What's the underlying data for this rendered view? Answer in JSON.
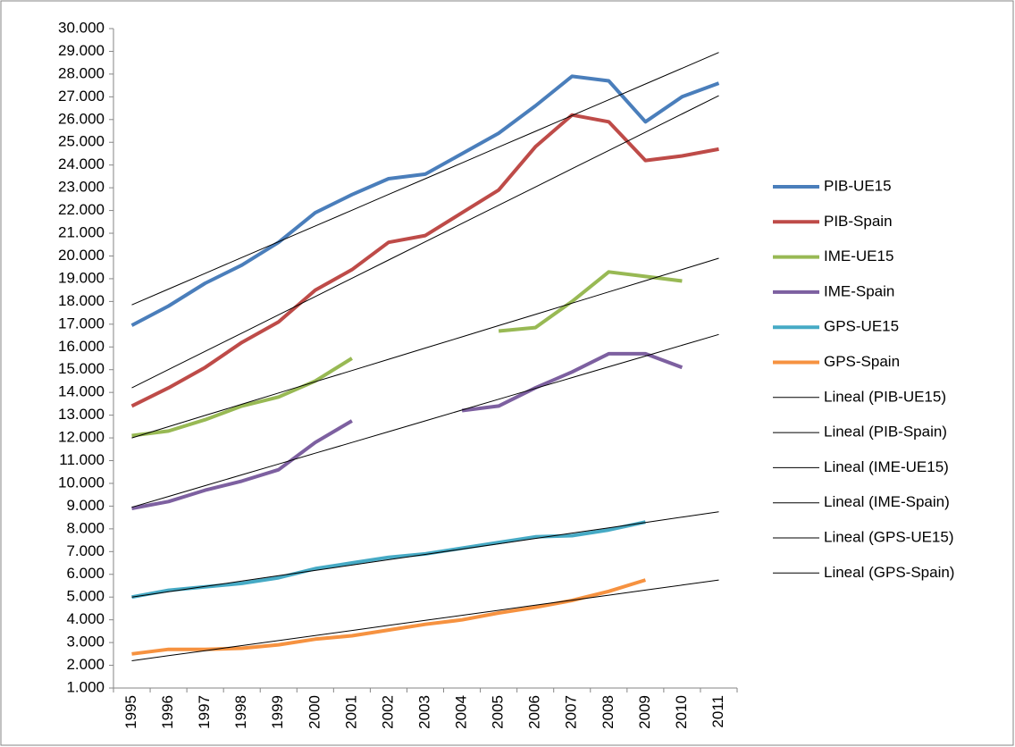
{
  "chart_data": {
    "type": "line",
    "categories": [
      "1995",
      "1996",
      "1997",
      "1998",
      "1999",
      "2000",
      "2001",
      "2002",
      "2003",
      "2004",
      "2005",
      "2006",
      "2007",
      "2008",
      "2009",
      "2010",
      "2011"
    ],
    "ylim": [
      1000,
      30000
    ],
    "yticks": [
      {
        "value": 1000,
        "label": "1.000"
      },
      {
        "value": 2000,
        "label": "2.000"
      },
      {
        "value": 3000,
        "label": "3.000"
      },
      {
        "value": 4000,
        "label": "4.000"
      },
      {
        "value": 5000,
        "label": "5.000"
      },
      {
        "value": 6000,
        "label": "6.000"
      },
      {
        "value": 7000,
        "label": "7.000"
      },
      {
        "value": 8000,
        "label": "8.000"
      },
      {
        "value": 9000,
        "label": "9.000"
      },
      {
        "value": 10000,
        "label": "10.000"
      },
      {
        "value": 11000,
        "label": "11.000"
      },
      {
        "value": 12000,
        "label": "12.000"
      },
      {
        "value": 13000,
        "label": "13.000"
      },
      {
        "value": 14000,
        "label": "14.000"
      },
      {
        "value": 15000,
        "label": "15.000"
      },
      {
        "value": 16000,
        "label": "16.000"
      },
      {
        "value": 17000,
        "label": "17.000"
      },
      {
        "value": 18000,
        "label": "18.000"
      },
      {
        "value": 19000,
        "label": "19.000"
      },
      {
        "value": 20000,
        "label": "20.000"
      },
      {
        "value": 21000,
        "label": "21.000"
      },
      {
        "value": 22000,
        "label": "22.000"
      },
      {
        "value": 23000,
        "label": "23.000"
      },
      {
        "value": 24000,
        "label": "24.000"
      },
      {
        "value": 25000,
        "label": "25.000"
      },
      {
        "value": 26000,
        "label": "26.000"
      },
      {
        "value": 27000,
        "label": "27.000"
      },
      {
        "value": 28000,
        "label": "28.000"
      },
      {
        "value": 29000,
        "label": "29.000"
      },
      {
        "value": 30000,
        "label": "30.000"
      }
    ],
    "legend": "right",
    "series": [
      {
        "name": "PIB-UE15",
        "color": "#4a7ebb",
        "line_width": 4,
        "values": [
          16950,
          17800,
          18800,
          19600,
          20600,
          21900,
          22700,
          23400,
          23600,
          24500,
          25400,
          26600,
          27900,
          27700,
          25900,
          27000,
          27600
        ]
      },
      {
        "name": "PIB-Spain",
        "color": "#be4b48",
        "line_width": 4,
        "values": [
          13400,
          14200,
          15100,
          16200,
          17100,
          18500,
          19400,
          20600,
          20900,
          21900,
          22900,
          24800,
          26200,
          25900,
          24200,
          24400,
          24700
        ]
      },
      {
        "name": "IME-UE15",
        "color": "#98b954",
        "line_width": 4,
        "values": [
          12100,
          12300,
          12800,
          13400,
          13800,
          14500,
          15500,
          null,
          null,
          null,
          16700,
          16850,
          18000,
          19300,
          19100,
          18900,
          null
        ]
      },
      {
        "name": "IME-Spain",
        "color": "#7d60a0",
        "line_width": 4,
        "values": [
          8900,
          9200,
          9700,
          10100,
          10600,
          11800,
          12750,
          null,
          null,
          13200,
          13400,
          14200,
          14900,
          15700,
          15700,
          15100,
          null
        ]
      },
      {
        "name": "GPS-UE15",
        "color": "#46aac5",
        "line_width": 4,
        "values": [
          5000,
          5300,
          5450,
          5600,
          5850,
          6250,
          6500,
          6750,
          6900,
          7150,
          7400,
          7650,
          7700,
          7950,
          8300,
          null,
          null
        ]
      },
      {
        "name": "GPS-Spain",
        "color": "#f69240",
        "line_width": 4,
        "values": [
          2500,
          2700,
          2700,
          2750,
          2900,
          3150,
          3300,
          3550,
          3800,
          4000,
          4300,
          4550,
          4850,
          5250,
          5750,
          null,
          null
        ]
      },
      {
        "name": "Lineal (PIB-UE15)",
        "color": "#000000",
        "line_width": 1,
        "values": [
          17850,
          18544,
          19238,
          19931,
          20625,
          21319,
          22013,
          22706,
          23400,
          24094,
          24788,
          25481,
          26175,
          26869,
          27563,
          28256,
          28950
        ]
      },
      {
        "name": "Lineal (PIB-Spain)",
        "color": "#000000",
        "line_width": 1,
        "values": [
          14200,
          15003,
          15806,
          16609,
          17413,
          18216,
          19019,
          19822,
          20625,
          21428,
          22231,
          23034,
          23838,
          24641,
          25444,
          26247,
          27050
        ]
      },
      {
        "name": "Lineal (IME-UE15)",
        "color": "#000000",
        "line_width": 1,
        "values": [
          12000,
          12494,
          12988,
          13481,
          13975,
          14469,
          14963,
          15456,
          15950,
          16444,
          16938,
          17431,
          17925,
          18419,
          18913,
          19406,
          19900
        ]
      },
      {
        "name": "Lineal (IME-Spain)",
        "color": "#000000",
        "line_width": 1,
        "values": [
          8950,
          9425,
          9900,
          10375,
          10850,
          11325,
          11800,
          12275,
          12750,
          13225,
          13700,
          14175,
          14650,
          15125,
          15600,
          16075,
          16550
        ]
      },
      {
        "name": "Lineal (GPS-UE15)",
        "color": "#000000",
        "line_width": 1,
        "values": [
          5000,
          5234,
          5469,
          5703,
          5938,
          6172,
          6406,
          6641,
          6875,
          7109,
          7344,
          7578,
          7813,
          8047,
          8281,
          8516,
          8750
        ]
      },
      {
        "name": "Lineal (GPS-Spain)",
        "color": "#000000",
        "line_width": 1,
        "values": [
          2200,
          2422,
          2644,
          2866,
          3088,
          3309,
          3531,
          3753,
          3975,
          4197,
          4419,
          4641,
          4863,
          5084,
          5306,
          5528,
          5750
        ]
      }
    ]
  }
}
